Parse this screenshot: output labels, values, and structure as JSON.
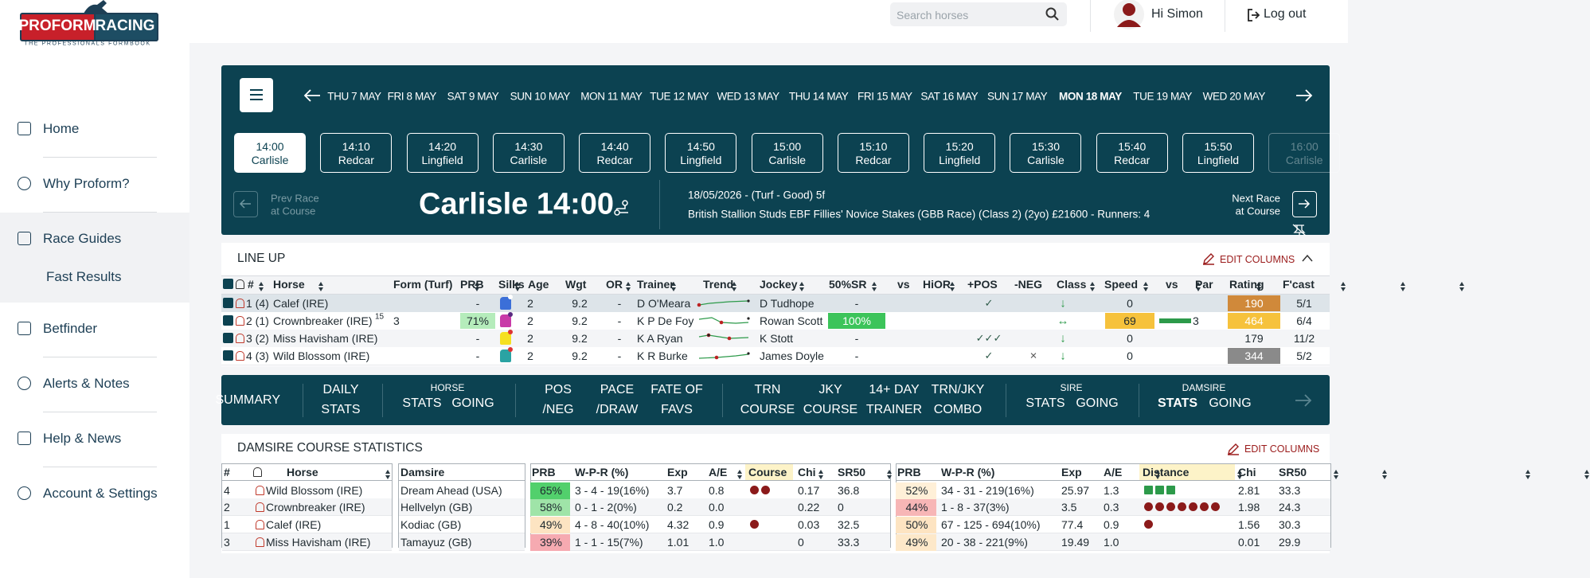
{
  "logo": {
    "brand_left": "PROFORM",
    "brand_right": "RACING",
    "tagline": "THE PROFESSIONALS FORMBOOK"
  },
  "nav": [
    "Home",
    "Why Proform?",
    "Race Guides",
    "Fast Results",
    "Betfinder",
    "Alerts & Notes",
    "Help & News",
    "Account & Settings"
  ],
  "header": {
    "search_placeholder": "Search horses",
    "greeting": "Hi Simon",
    "logout": "Log out"
  },
  "dates": {
    "items": [
      "THU 7 MAY",
      "FRI 8 MAY",
      "SAT 9 MAY",
      "SUN 10 MAY",
      "MON 11 MAY",
      "TUE 12 MAY",
      "WED 13 MAY",
      "THU 14 MAY",
      "FRI 15 MAY",
      "SAT 16 MAY",
      "SUN 17 MAY",
      "MON 18 MAY",
      "TUE 19 MAY",
      "WED 20 MAY"
    ],
    "active": 11
  },
  "races": {
    "items": [
      {
        "time": "14:00",
        "course": "Carlisle"
      },
      {
        "time": "14:10",
        "course": "Redcar"
      },
      {
        "time": "14:20",
        "course": "Lingfield"
      },
      {
        "time": "14:30",
        "course": "Carlisle"
      },
      {
        "time": "14:40",
        "course": "Redcar"
      },
      {
        "time": "14:50",
        "course": "Lingfield"
      },
      {
        "time": "15:00",
        "course": "Carlisle"
      },
      {
        "time": "15:10",
        "course": "Redcar"
      },
      {
        "time": "15:20",
        "course": "Lingfield"
      },
      {
        "time": "15:30",
        "course": "Carlisle"
      },
      {
        "time": "15:40",
        "course": "Redcar"
      },
      {
        "time": "15:50",
        "course": "Lingfield"
      },
      {
        "time": "16:00",
        "course": "Carlisle"
      }
    ],
    "active": 0
  },
  "race": {
    "prev": [
      "Prev Race",
      "at Course"
    ],
    "title": "Carlisle 14:00",
    "details": [
      "18/05/2026 - (Turf - Good) 5f",
      "British Stallion Studs EBF Fillies' Novice Stakes (GBB Race) (Class 2) (2yo) £21600 - Runners: 4"
    ],
    "next": [
      "Next Race",
      "at Course"
    ]
  },
  "lineup": {
    "title": "LINE UP",
    "edit": "EDIT COLUMNS",
    "columns": [
      "#",
      "Horse",
      "Form (Turf)",
      "PRB",
      "Silks",
      "Age",
      "Wgt",
      "OR",
      "Trainer",
      "Trend",
      "Jockey",
      "50%SR",
      "vs",
      "HiOR",
      "+POS",
      "-NEG",
      "Class",
      "Speed",
      "vs",
      "Par",
      "Rating",
      "F'cast"
    ],
    "rows": [
      {
        "num": "1 (4)",
        "horse": "Calef (IRE)",
        "prb": "-",
        "age": "2",
        "wgt": "9.2",
        "or": "-",
        "trainer": "D O'Meara",
        "jockey": "D Tudhope",
        "sr": "-",
        "pos": "✓",
        "cls": "↓",
        "speed": "0",
        "rating": "190",
        "rating_color": "#d0893a",
        "fcast": "5/1"
      },
      {
        "num": "2 (1)",
        "horse": "Crownbreaker (IRE)",
        "sup": "15",
        "form": "3",
        "prb": "71%",
        "prb_color": "#b5ecbb",
        "age": "2",
        "wgt": "9.2",
        "or": "-",
        "trainer": "K P De Foy",
        "jockey": "Rowan Scott",
        "sr": "100%",
        "sr_color": "#3cc45a",
        "cls": "↔",
        "speed": "69",
        "speed_color": "#f6c23c",
        "par": "3",
        "rating": "464",
        "rating_color": "#f6c23c",
        "fcast": "6/4"
      },
      {
        "num": "3 (2)",
        "horse": "Miss Havisham (IRE)",
        "prb": "-",
        "age": "2",
        "wgt": "9.2",
        "or": "-",
        "trainer": "K A Ryan",
        "jockey": "K Stott",
        "sr": "-",
        "pos": "✓✓✓",
        "cls": "↓",
        "speed": "0",
        "rating": "179",
        "fcast": "11/2"
      },
      {
        "num": "4 (3)",
        "horse": "Wild Blossom (IRE)",
        "prb": "-",
        "age": "2",
        "wgt": "9.2",
        "or": "-",
        "trainer": "K R Burke",
        "jockey": "James Doyle",
        "sr": "-",
        "pos": "✓",
        "neg": "×",
        "cls": "↓",
        "speed": "0",
        "rating": "344",
        "rating_color": "#8a8a8a",
        "fcast": "5/2"
      }
    ]
  },
  "tabs": [
    {
      "lines": [
        "SUMMARY"
      ]
    },
    {
      "lines": [
        "DAILY",
        "STATS"
      ]
    },
    {
      "header": "HORSE",
      "items": [
        "STATS",
        "GOING"
      ]
    },
    {
      "lines": [
        "POS",
        "/NEG"
      ]
    },
    {
      "lines": [
        "PACE",
        "/DRAW"
      ]
    },
    {
      "lines": [
        "FATE OF",
        "FAVS"
      ]
    },
    {
      "lines": [
        "TRN",
        "COURSE"
      ]
    },
    {
      "lines": [
        "JKY",
        "COURSE"
      ]
    },
    {
      "lines": [
        "14+ DAY",
        "TRAINER"
      ]
    },
    {
      "lines": [
        "TRN/JKY",
        "COMBO"
      ]
    },
    {
      "header": "SIRE",
      "items": [
        "STATS",
        "GOING"
      ]
    },
    {
      "header": "DAMSIRE",
      "items": [
        "STATS",
        "GOING"
      ],
      "active": 0
    }
  ],
  "damsire": {
    "title": "DAMSIRE COURSE STATISTICS",
    "edit": "EDIT COLUMNS",
    "horses": {
      "columns": [
        "#",
        "Horse"
      ],
      "rows": [
        [
          "4",
          "Wild Blossom (IRE)"
        ],
        [
          "2",
          "Crownbreaker (IRE)"
        ],
        [
          "1",
          "Calef (IRE)"
        ],
        [
          "3",
          "Miss Havisham (IRE)"
        ]
      ]
    },
    "sires": {
      "columns": [
        "Damsire"
      ],
      "rows": [
        [
          "Dream Ahead (USA)"
        ],
        [
          "Hellvelyn (GB)"
        ],
        [
          "Kodiac (GB)"
        ],
        [
          "Tamayuz (GB)"
        ]
      ]
    },
    "course": {
      "columns": [
        "PRB",
        "W-P-R (%)",
        "Exp",
        "A/E",
        "Course",
        "Chi",
        "SR50"
      ],
      "rows": [
        {
          "prb": "65%",
          "prb_color": "#52d06c",
          "wpr": "3 - 4 - 19(16%)",
          "exp": "3.7",
          "ae": "0.8",
          "dots": 2,
          "chi": "0.17",
          "sr50": "36.8"
        },
        {
          "prb": "58%",
          "prb_color": "#9fe4a8",
          "wpr": "0 - 1 - 2(0%)",
          "exp": "0.2",
          "ae": "0.0",
          "chi": "0.22",
          "sr50": "0"
        },
        {
          "prb": "49%",
          "prb_color": "#fde4c2",
          "wpr": "4 - 8 - 40(10%)",
          "exp": "4.32",
          "ae": "0.9",
          "dots": 1,
          "chi": "0.03",
          "sr50": "32.5"
        },
        {
          "prb": "39%",
          "prb_color": "#f6aab1",
          "wpr": "1 - 1 - 15(7%)",
          "exp": "1.01",
          "ae": "1.0",
          "chi": "0",
          "sr50": "33.3"
        }
      ]
    },
    "distance": {
      "columns": [
        "PRB",
        "W-P-R (%)",
        "Exp",
        "A/E",
        "Distance",
        "Chi",
        "SR50"
      ],
      "rows": [
        {
          "prb": "52%",
          "prb_color": "#fff0d8",
          "wpr": "34 - 31 - 219(16%)",
          "exp": "25.97",
          "ae": "1.3",
          "dots": 3,
          "dot_shape": "square",
          "chi": "2.81",
          "sr50": "33.3"
        },
        {
          "prb": "44%",
          "prb_color": "#f7b6b6",
          "wpr": "1 - 8 - 37(3%)",
          "exp": "3.5",
          "ae": "0.3",
          "dots": 7,
          "chi": "1.98",
          "sr50": "24.3"
        },
        {
          "prb": "50%",
          "prb_color": "#fde4c2",
          "wpr": "67 - 125 - 694(10%)",
          "exp": "77.4",
          "ae": "0.9",
          "dots": 1,
          "chi": "1.56",
          "sr50": "30.3"
        },
        {
          "prb": "49%",
          "prb_color": "#fde8c9",
          "wpr": "20 - 38 - 221(9%)",
          "exp": "19.49",
          "ae": "1.0",
          "chi": "0.01",
          "sr50": "29.9"
        }
      ]
    }
  }
}
